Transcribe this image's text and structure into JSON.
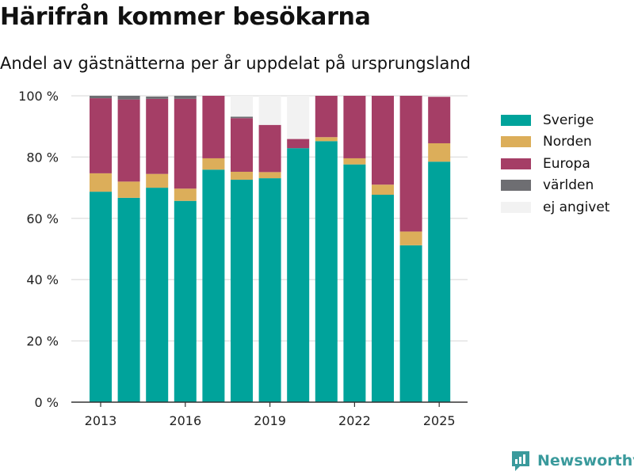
{
  "title": "Härifrån kommer besökarna",
  "subtitle": "Andel av gästnätterna per år uppdelat på ursprungsland",
  "brand": "Newsworthy",
  "chart_data": {
    "type": "bar",
    "stacked": true,
    "x": [
      2013,
      2014,
      2015,
      2016,
      2017,
      2018,
      2019,
      2020,
      2021,
      2022,
      2023,
      2024,
      2025
    ],
    "x_tick_labels": [
      "2013",
      "2016",
      "2019",
      "2022",
      "2025"
    ],
    "x_ticks": [
      2013,
      2016,
      2019,
      2022,
      2025
    ],
    "y_tick_labels": [
      "0 %",
      "20 %",
      "40 %",
      "60 %",
      "80 %",
      "100 %"
    ],
    "y_ticks": [
      0,
      20,
      40,
      60,
      80,
      100
    ],
    "ylim": [
      0,
      100
    ],
    "grid": true,
    "legend_position": "right",
    "series": [
      {
        "name": "Sverige",
        "color": "#00a39b",
        "values": [
          68.7,
          66.7,
          70.0,
          65.7,
          75.9,
          72.6,
          73.1,
          82.9,
          85.2,
          77.6,
          67.7,
          51.2,
          78.5
        ]
      },
      {
        "name": "Norden",
        "color": "#dcae5a",
        "values": [
          6.0,
          5.3,
          4.5,
          4.0,
          3.7,
          2.6,
          2.0,
          0.0,
          1.3,
          2.0,
          3.3,
          4.5,
          6.0
        ]
      },
      {
        "name": "Europa",
        "color": "#a53e66",
        "values": [
          24.5,
          26.8,
          24.5,
          29.3,
          20.4,
          17.5,
          15.4,
          3.0,
          13.5,
          20.4,
          29.0,
          44.3,
          15.2
        ]
      },
      {
        "name": "världen",
        "color": "#6e6e72",
        "values": [
          0.8,
          1.2,
          0.8,
          1.0,
          0.0,
          0.5,
          0.0,
          0.0,
          0.0,
          0.0,
          0.0,
          0.0,
          0.0
        ]
      },
      {
        "name": "ej angivet",
        "color": "#f2f2f2",
        "values": [
          0.0,
          0.0,
          0.2,
          0.0,
          0.0,
          6.8,
          9.5,
          14.1,
          0.0,
          0.0,
          0.0,
          0.0,
          0.3
        ]
      }
    ]
  }
}
